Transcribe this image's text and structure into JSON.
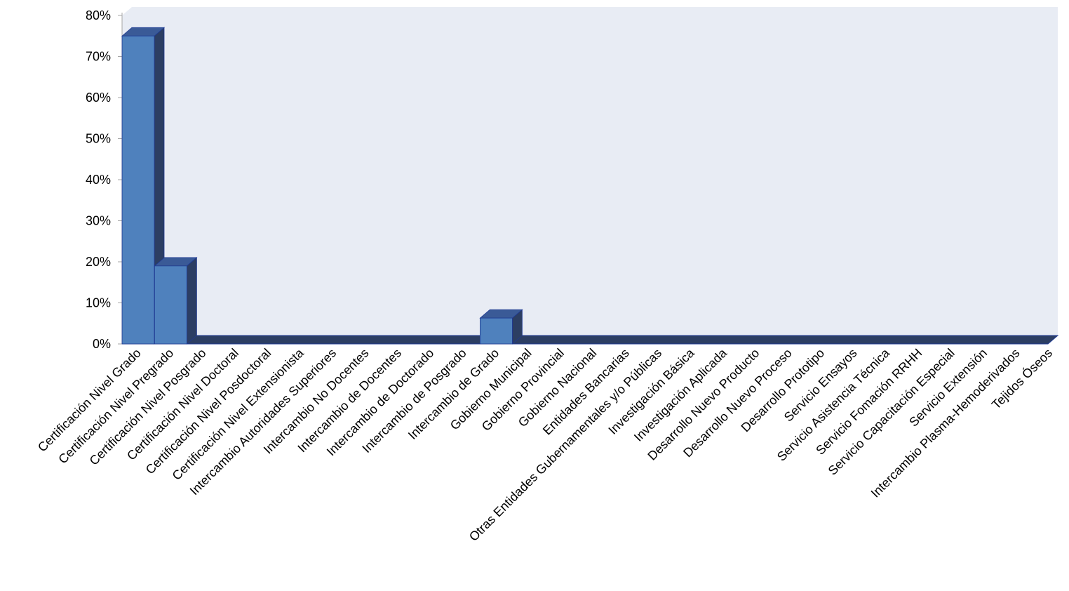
{
  "chart_data": {
    "type": "bar",
    "title": "",
    "xlabel": "",
    "ylabel": "",
    "ylim": [
      0,
      80
    ],
    "yticks": [
      "0%",
      "10%",
      "20%",
      "30%",
      "40%",
      "50%",
      "60%",
      "70%",
      "80%"
    ],
    "grid": false,
    "legend": "none",
    "three_d": true,
    "categories": [
      "Certificación Nivel Grado",
      "Certificación Nivel Pregrado",
      "Certificación Nivel Posgrado",
      "Certificación Nivel Doctoral",
      "Certificación Nivel Posdoctoral",
      "Certificación Nivel Extensionista",
      "Intercambio Autoridades Superiores",
      "Intercambio No Docentes",
      "Intercambio de Docentes",
      "Intercambio de Doctorado",
      "Intercambio de Posgrado",
      "Intercambio de Grado",
      "Gobierno Municipal",
      "Gobierno Provincial",
      "Gobierno Nacional",
      "Entidades Bancarias",
      "Otras Entidades Gubernamentales y/o Públicas",
      "Investigación Básica",
      "Investigación Aplicada",
      "Desarrollo Nuevo Producto",
      "Desarrollo Nuevo Proceso",
      "Desarrollo Prototipo",
      "Servicio Ensayos",
      "Servicio Asistencia Técnica",
      "Servicio Fomación RRHH",
      "Servicio Capacitación Especial",
      "Servicio Extensión",
      "Intercambio Plasma-Hemoderivados",
      "Tejidos Óseos"
    ],
    "values": [
      75,
      19,
      0,
      0,
      0,
      0,
      0,
      0,
      0,
      0,
      0,
      6.3,
      0,
      0,
      0,
      0,
      0,
      0,
      0,
      0,
      0,
      0,
      0,
      0,
      0,
      0,
      0,
      0,
      0
    ],
    "colors": {
      "bar_front": "#4f81bd",
      "bar_side": "#2c3e63",
      "bar_top": "#3a5a97",
      "bar_edge": "#1f3a93",
      "back_wall": "#e8ecf4",
      "floor": "#2c3e63",
      "axis": "#a6a6a6",
      "text": "#000000"
    }
  }
}
